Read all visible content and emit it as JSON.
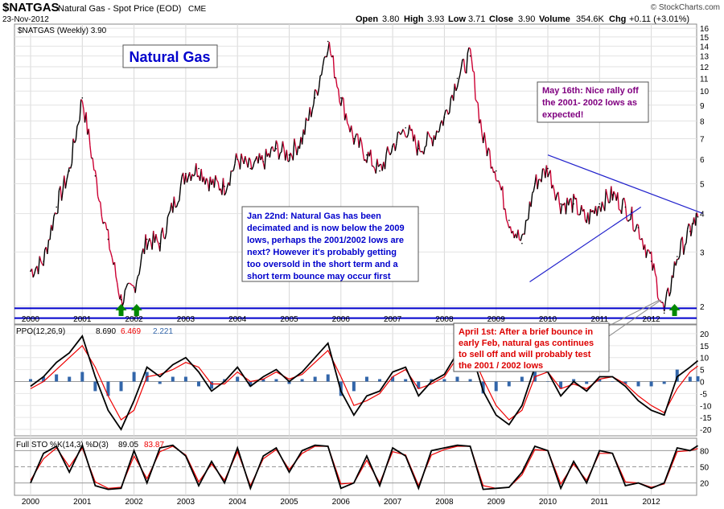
{
  "header": {
    "symbol": "$NATGAS",
    "description": "Natural Gas - Spot Price (EOD)",
    "exchange": "CME",
    "date": "23-Nov-2012",
    "copyright": "© StockCharts.com",
    "quote": {
      "open_label": "Open",
      "open": "3.80",
      "high_label": "High",
      "high": "3.93",
      "low_label": "Low",
      "low": "3.71",
      "close_label": "Close",
      "close": "3.90",
      "volume_label": "Volume",
      "volume": "354.6K",
      "chg_label": "Chg",
      "chg": "+0.11 (+3.01%)"
    }
  },
  "price_panel": {
    "legend": "$NATGAS (Weekly) 3.90",
    "title_box": "Natural Gas",
    "annotations": [
      {
        "lines": [
          "Jan 22nd: Natural Gas has been",
          "decimated and is now below the 2009",
          "lows, perhaps the 2001/2002 lows are",
          "next?  However it's probably getting",
          "too oversold in the short term and a",
          "short term bounce may occur first"
        ],
        "color": "#0000cc"
      },
      {
        "lines": [
          "May 16th: Nice rally off",
          "the 2001- 2002 lows as",
          "expected!"
        ],
        "color": "#800080"
      },
      {
        "lines": [
          "April 1st: After a brief bounce in",
          "early Feb, natural gas continues",
          "to sell off and will probably test",
          "the 2001 / 2002 lows"
        ],
        "color": "#dd0000"
      }
    ]
  },
  "ppo_panel": {
    "label": "PPO(12,26,9)",
    "ppo": "8.690",
    "signal": "6.469",
    "hist": "2.221"
  },
  "sto_panel": {
    "label": "Full STO %K(14,3) %D(3)",
    "k": "89.05",
    "d": "83.87"
  },
  "colors": {
    "price_line": "#000000",
    "down_line": "#cc0033",
    "ppo_line": "#000000",
    "signal_line": "#ee0000",
    "hist": "#3366aa",
    "support": "#0000cc",
    "trend": "#2222cc",
    "arrow": "#008800"
  },
  "chart_data": {
    "type": "line",
    "scale": "log",
    "x": [
      2000.0,
      2000.25,
      2000.5,
      2000.75,
      2001.0,
      2001.25,
      2001.5,
      2001.75,
      2002.0,
      2002.25,
      2002.5,
      2002.75,
      2003.0,
      2003.25,
      2003.5,
      2003.75,
      2004.0,
      2004.25,
      2004.5,
      2004.75,
      2005.0,
      2005.25,
      2005.5,
      2005.75,
      2006.0,
      2006.25,
      2006.5,
      2006.75,
      2007.0,
      2007.25,
      2007.5,
      2007.75,
      2008.0,
      2008.25,
      2008.5,
      2008.75,
      2009.0,
      2009.25,
      2009.5,
      2009.75,
      2010.0,
      2010.25,
      2010.5,
      2010.75,
      2011.0,
      2011.25,
      2011.5,
      2011.75,
      2012.0,
      2012.25,
      2012.5,
      2012.75,
      2012.9
    ],
    "values": [
      2.6,
      2.8,
      4.2,
      5.5,
      9.5,
      5.3,
      3.3,
      2.1,
      2.3,
      3.3,
      3.2,
      4.2,
      5.4,
      5.6,
      5.0,
      4.9,
      6.0,
      5.6,
      5.9,
      6.5,
      6.2,
      7.0,
      9.5,
      14.5,
      9.5,
      7.0,
      6.2,
      5.5,
      6.6,
      7.6,
      6.5,
      7.0,
      8.2,
      11.0,
      13.0,
      7.0,
      5.5,
      3.8,
      3.2,
      5.0,
      5.6,
      4.3,
      4.3,
      3.8,
      4.3,
      4.6,
      4.2,
      3.6,
      2.8,
      1.9,
      2.9,
      3.5,
      3.9
    ],
    "yticks": [
      2,
      3,
      4,
      5,
      6,
      7,
      8,
      9,
      10,
      11,
      12,
      13,
      14,
      15,
      16
    ],
    "xlabels": [
      "2000",
      "2001",
      "2002",
      "2003",
      "2004",
      "2005",
      "2006",
      "2007",
      "2008",
      "2009",
      "2010",
      "2011",
      "2012"
    ],
    "ylim": [
      1.75,
      16.5
    ],
    "support_levels": [
      1.97,
      1.83
    ],
    "trendlines": [
      {
        "from": [
          2009.65,
          2.4
        ],
        "to": [
          2011.8,
          4.2
        ]
      },
      {
        "from": [
          2010.0,
          6.2
        ],
        "to": [
          2013.0,
          4.0
        ]
      }
    ],
    "arrows_at": [
      2001.75,
      2002.05,
      2012.45
    ],
    "ppo": {
      "yticks": [
        -20,
        -15,
        -10,
        -5,
        0,
        5,
        10,
        15,
        20
      ],
      "ylim": [
        -22,
        23
      ],
      "x": [
        2000.0,
        2000.25,
        2000.5,
        2000.75,
        2001.0,
        2001.25,
        2001.5,
        2001.75,
        2002.0,
        2002.25,
        2002.5,
        2002.75,
        2003.0,
        2003.25,
        2003.5,
        2003.75,
        2004.0,
        2004.25,
        2004.5,
        2004.75,
        2005.0,
        2005.25,
        2005.5,
        2005.75,
        2006.0,
        2006.25,
        2006.5,
        2006.75,
        2007.0,
        2007.25,
        2007.5,
        2007.75,
        2008.0,
        2008.25,
        2008.5,
        2008.75,
        2009.0,
        2009.25,
        2009.5,
        2009.75,
        2010.0,
        2010.25,
        2010.5,
        2010.75,
        2011.0,
        2011.25,
        2011.5,
        2011.75,
        2012.0,
        2012.25,
        2012.5,
        2012.75,
        2012.9
      ],
      "ppo_values": [
        -2,
        2,
        8,
        12,
        19,
        2,
        -12,
        -20,
        -8,
        6,
        2,
        7,
        10,
        4,
        -4,
        0,
        6,
        -2,
        2,
        5,
        0,
        4,
        10,
        16,
        -4,
        -14,
        -6,
        -4,
        4,
        6,
        -6,
        0,
        3,
        12,
        14,
        -4,
        -14,
        -18,
        -10,
        6,
        4,
        -6,
        0,
        -4,
        2,
        2,
        -2,
        -8,
        -12,
        -14,
        2,
        6,
        8.69
      ],
      "signal_values": [
        -3,
        0,
        5,
        10,
        15,
        6,
        -6,
        -16,
        -12,
        2,
        3,
        5,
        8,
        6,
        -1,
        -1,
        4,
        0,
        1,
        4,
        1,
        3,
        8,
        13,
        2,
        -10,
        -8,
        -5,
        2,
        5,
        -3,
        -1,
        2,
        10,
        13,
        1,
        -10,
        -16,
        -12,
        2,
        4,
        -3,
        -1,
        -3,
        1,
        2,
        -1,
        -6,
        -10,
        -13,
        -3,
        4,
        6.47
      ]
    },
    "sto": {
      "yticks": [
        20,
        50,
        80
      ],
      "ylim": [
        0,
        100
      ],
      "x": [
        2000.0,
        2000.25,
        2000.5,
        2000.75,
        2001.0,
        2001.25,
        2001.5,
        2001.75,
        2002.0,
        2002.25,
        2002.5,
        2002.75,
        2003.0,
        2003.25,
        2003.5,
        2003.75,
        2004.0,
        2004.25,
        2004.5,
        2004.75,
        2005.0,
        2005.25,
        2005.5,
        2005.75,
        2006.0,
        2006.25,
        2006.5,
        2006.75,
        2007.0,
        2007.25,
        2007.5,
        2007.75,
        2008.0,
        2008.25,
        2008.5,
        2008.75,
        2009.0,
        2009.25,
        2009.5,
        2009.75,
        2010.0,
        2010.25,
        2010.5,
        2010.75,
        2011.0,
        2011.25,
        2011.5,
        2011.75,
        2012.0,
        2012.25,
        2012.5,
        2012.75,
        2012.9
      ],
      "k_values": [
        20,
        75,
        88,
        40,
        90,
        15,
        8,
        10,
        80,
        20,
        85,
        90,
        70,
        15,
        60,
        20,
        85,
        10,
        70,
        85,
        40,
        80,
        90,
        88,
        10,
        20,
        70,
        15,
        85,
        70,
        10,
        80,
        85,
        90,
        88,
        8,
        10,
        12,
        40,
        88,
        80,
        10,
        60,
        20,
        80,
        75,
        15,
        20,
        10,
        20,
        85,
        80,
        89.05
      ],
      "d_values": [
        25,
        65,
        85,
        50,
        85,
        22,
        10,
        12,
        70,
        28,
        78,
        88,
        72,
        22,
        55,
        25,
        78,
        15,
        65,
        82,
        45,
        75,
        88,
        88,
        18,
        20,
        62,
        20,
        78,
        72,
        15,
        72,
        82,
        88,
        88,
        15,
        10,
        12,
        35,
        82,
        80,
        18,
        55,
        25,
        75,
        75,
        22,
        20,
        12,
        18,
        78,
        80,
        83.87
      ]
    }
  }
}
